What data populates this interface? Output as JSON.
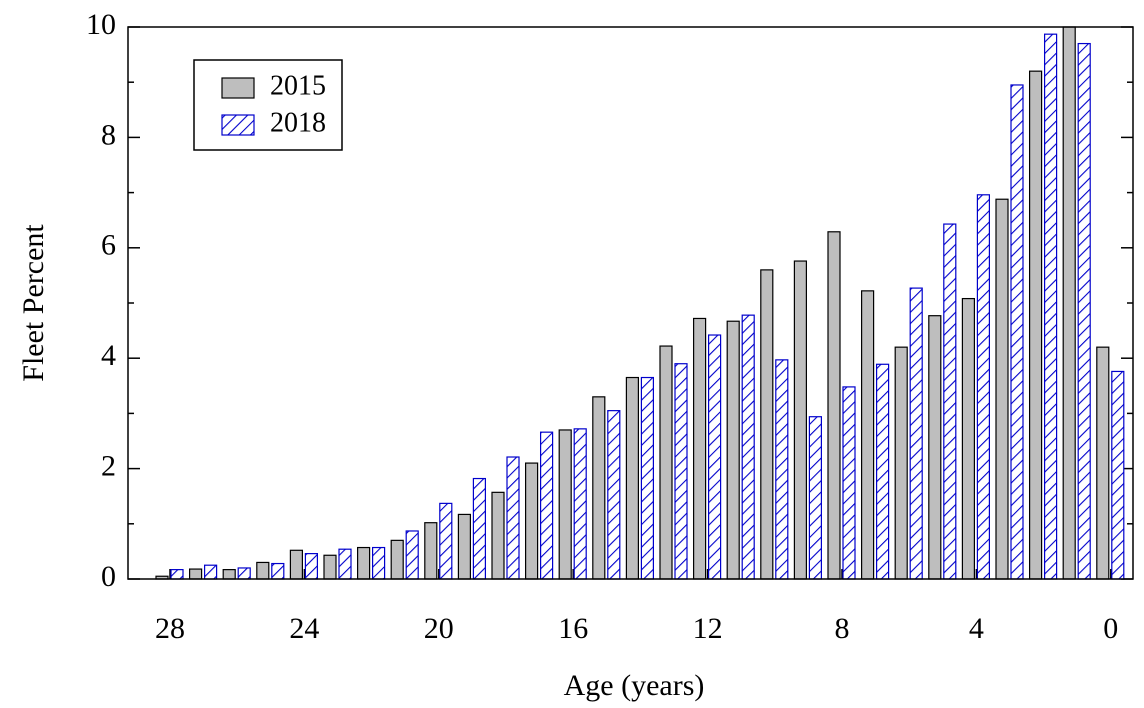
{
  "chart_data": {
    "type": "bar",
    "x_label": "Age (years)",
    "y_label": "Fleet Percent",
    "categories": [
      "28",
      null,
      null,
      null,
      "24",
      null,
      null,
      null,
      "20",
      null,
      null,
      null,
      "16",
      null,
      null,
      null,
      "12",
      null,
      null,
      null,
      "8",
      null,
      null,
      null,
      "4",
      null,
      null,
      null,
      "0"
    ],
    "series": [
      {
        "name": "2015",
        "color": "#bebebe",
        "hatch": false,
        "values": [
          0.05,
          0.18,
          0.17,
          0.3,
          0.52,
          0.43,
          0.57,
          0.7,
          1.02,
          1.17,
          1.57,
          2.1,
          2.7,
          3.3,
          3.65,
          4.22,
          4.72,
          4.67,
          5.6,
          5.76,
          6.29,
          5.22,
          4.2,
          4.77,
          5.08,
          6.88,
          9.2,
          10.0,
          4.2
        ]
      },
      {
        "name": "2018",
        "color": "#0000cc",
        "hatch": true,
        "values": [
          0.17,
          0.25,
          0.2,
          0.28,
          0.46,
          0.54,
          0.57,
          0.87,
          1.37,
          1.82,
          2.21,
          2.66,
          2.72,
          3.05,
          3.65,
          3.9,
          4.42,
          4.78,
          3.97,
          2.94,
          3.48,
          3.89,
          5.27,
          6.43,
          6.96,
          8.95,
          9.87,
          9.7,
          3.76
        ]
      }
    ],
    "ylim": [
      0,
      10
    ],
    "yticks": [
      0,
      2,
      4,
      6,
      8,
      10
    ],
    "legend": "upper-left",
    "grid": false
  }
}
